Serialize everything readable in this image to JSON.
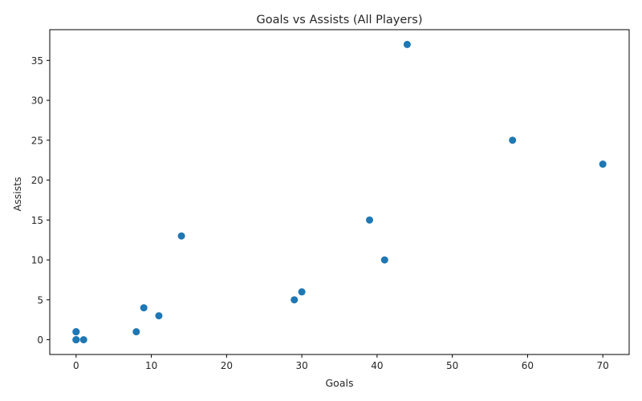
{
  "chart_data": {
    "type": "scatter",
    "title": "Goals vs Assists (All Players)",
    "xlabel": "Goals",
    "ylabel": "Assists",
    "xlim": [
      -3.5,
      73.5
    ],
    "ylim": [
      -1.85,
      38.85
    ],
    "xticks": [
      0,
      10,
      20,
      30,
      40,
      50,
      60,
      70
    ],
    "yticks": [
      0,
      5,
      10,
      15,
      20,
      25,
      30,
      35
    ],
    "grid": false,
    "legend": "none",
    "color": "#1f77b4",
    "points": [
      {
        "x": 0,
        "y": 0
      },
      {
        "x": 0,
        "y": 0
      },
      {
        "x": 0,
        "y": 0
      },
      {
        "x": 0,
        "y": 1
      },
      {
        "x": 0,
        "y": 1
      },
      {
        "x": 1,
        "y": 0
      },
      {
        "x": 8,
        "y": 1
      },
      {
        "x": 9,
        "y": 4
      },
      {
        "x": 11,
        "y": 3
      },
      {
        "x": 14,
        "y": 13
      },
      {
        "x": 29,
        "y": 5
      },
      {
        "x": 30,
        "y": 6
      },
      {
        "x": 39,
        "y": 15
      },
      {
        "x": 41,
        "y": 10
      },
      {
        "x": 44,
        "y": 37
      },
      {
        "x": 58,
        "y": 25
      },
      {
        "x": 70,
        "y": 22
      }
    ]
  }
}
